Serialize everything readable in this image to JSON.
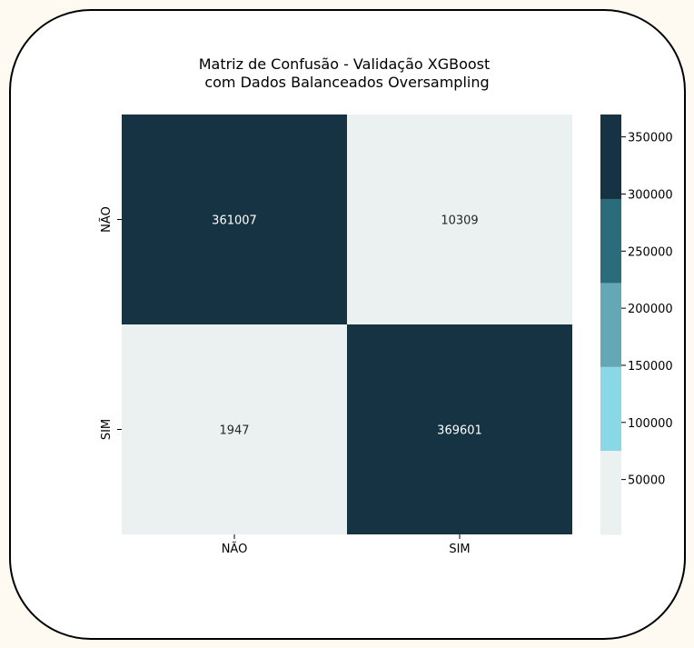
{
  "chart_data": {
    "type": "heatmap",
    "title_lines": [
      "Matriz de Confusão - Validação XGBoost",
      "com Dados Balanceados Oversampling"
    ],
    "xlabel": "",
    "ylabel": "",
    "x_categories": [
      "NÃO",
      "SIM"
    ],
    "y_categories": [
      "NÃO",
      "SIM"
    ],
    "values": [
      [
        361007,
        10309
      ],
      [
        1947,
        369601
      ]
    ],
    "colorbar": {
      "min": 1947,
      "max": 369601,
      "ticks": [
        50000,
        100000,
        150000,
        200000,
        250000,
        300000,
        350000
      ],
      "tick_labels": [
        "50000",
        "100000",
        "150000",
        "200000",
        "250000",
        "300000",
        "350000"
      ],
      "palette": [
        "#ebf1f0",
        "#8ad7e6",
        "#64a8b5",
        "#2a6c7a",
        "#163343"
      ]
    },
    "annotation_colors": {
      "on_light": "#262626",
      "on_dark": "#ffffff"
    }
  }
}
